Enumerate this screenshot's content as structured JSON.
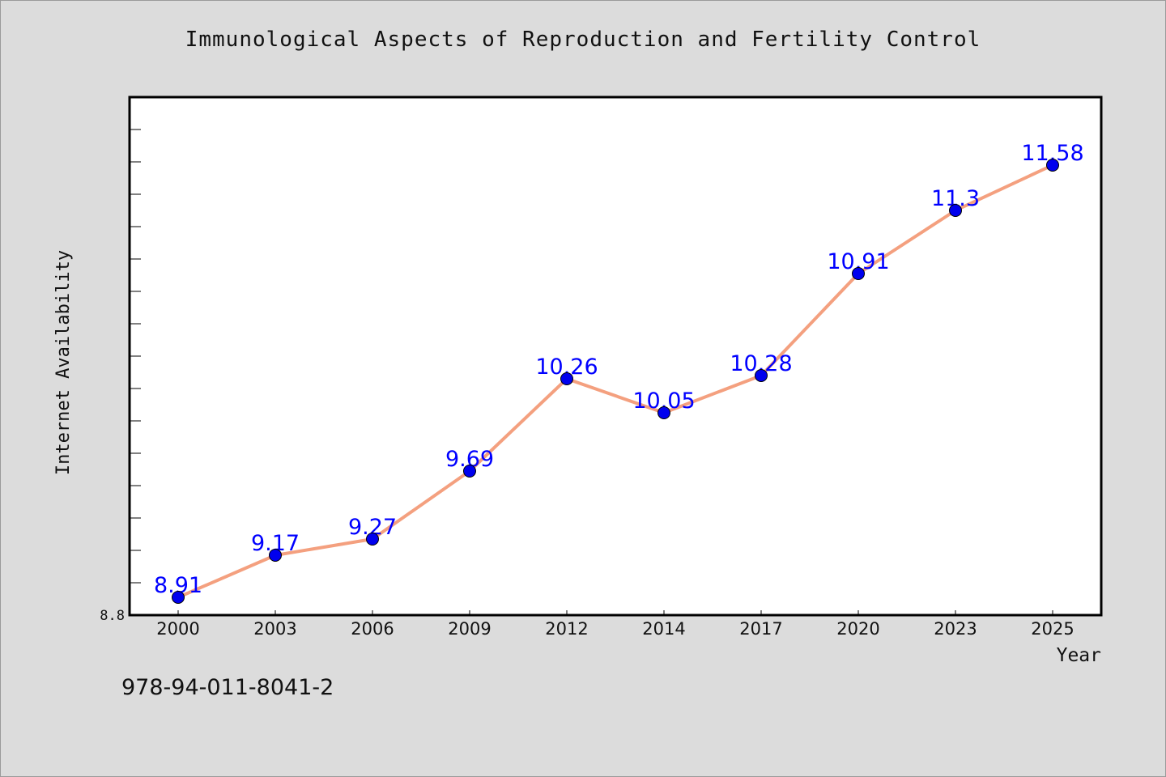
{
  "chart_data": {
    "type": "line",
    "title": "Immunological Aspects of Reproduction and Fertility Control",
    "xlabel": "Year",
    "ylabel": "Internet Availability",
    "categories": [
      "2000",
      "2003",
      "2006",
      "2009",
      "2012",
      "2014",
      "2017",
      "2020",
      "2023",
      "2025"
    ],
    "series": [
      {
        "values": [
          8.91,
          9.17,
          9.27,
          9.69,
          10.26,
          10.05,
          10.28,
          10.91,
          11.3,
          11.58
        ]
      }
    ],
    "ylim": [
      8.8,
      12.0
    ],
    "y_tick_labels": [
      "8.8"
    ],
    "data_labels": true,
    "grid": false,
    "colors": {
      "line": "#f4a07f",
      "marker": "#0000ee",
      "label": "#0000ff"
    }
  },
  "footer_text": "978-94-011-8041-2"
}
